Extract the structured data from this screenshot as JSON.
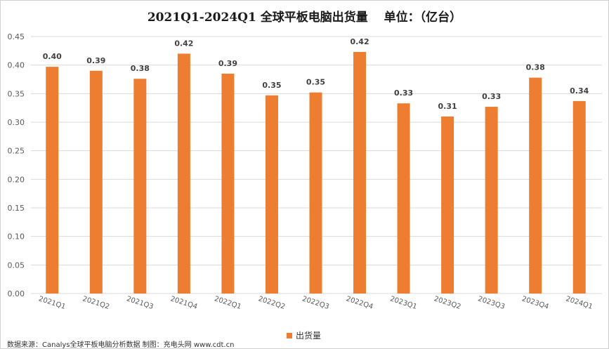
{
  "chart_data": {
    "type": "bar",
    "title": "2021Q1-2024Q1 全球平板电脑出货量　 单位：（亿台）",
    "categories": [
      "2021Q1",
      "2021Q2",
      "2021Q3",
      "2021Q4",
      "2022Q1",
      "2022Q2",
      "2022Q3",
      "2022Q4",
      "2023Q1",
      "2023Q2",
      "2023Q3",
      "2023Q4",
      "2024Q1"
    ],
    "series": [
      {
        "name": "出货量",
        "values": [
          0.397,
          0.39,
          0.376,
          0.42,
          0.385,
          0.347,
          0.352,
          0.423,
          0.333,
          0.31,
          0.327,
          0.378,
          0.337
        ],
        "labels": [
          "0.40",
          "0.39",
          "0.38",
          "0.42",
          "0.39",
          "0.35",
          "0.35",
          "0.42",
          "0.33",
          "0.31",
          "0.33",
          "0.38",
          "0.34"
        ],
        "color": "#ED7D31"
      }
    ],
    "ylim": [
      0,
      0.45
    ],
    "yticks": [
      "0.00",
      "0.05",
      "0.10",
      "0.15",
      "0.20",
      "0.25",
      "0.30",
      "0.35",
      "0.40",
      "0.45"
    ],
    "grid": true,
    "legend": "bottom-center",
    "source": "数据来源：Canalys全球平板电脑分析数据 制图：充电头网 www.cdt.cn"
  }
}
